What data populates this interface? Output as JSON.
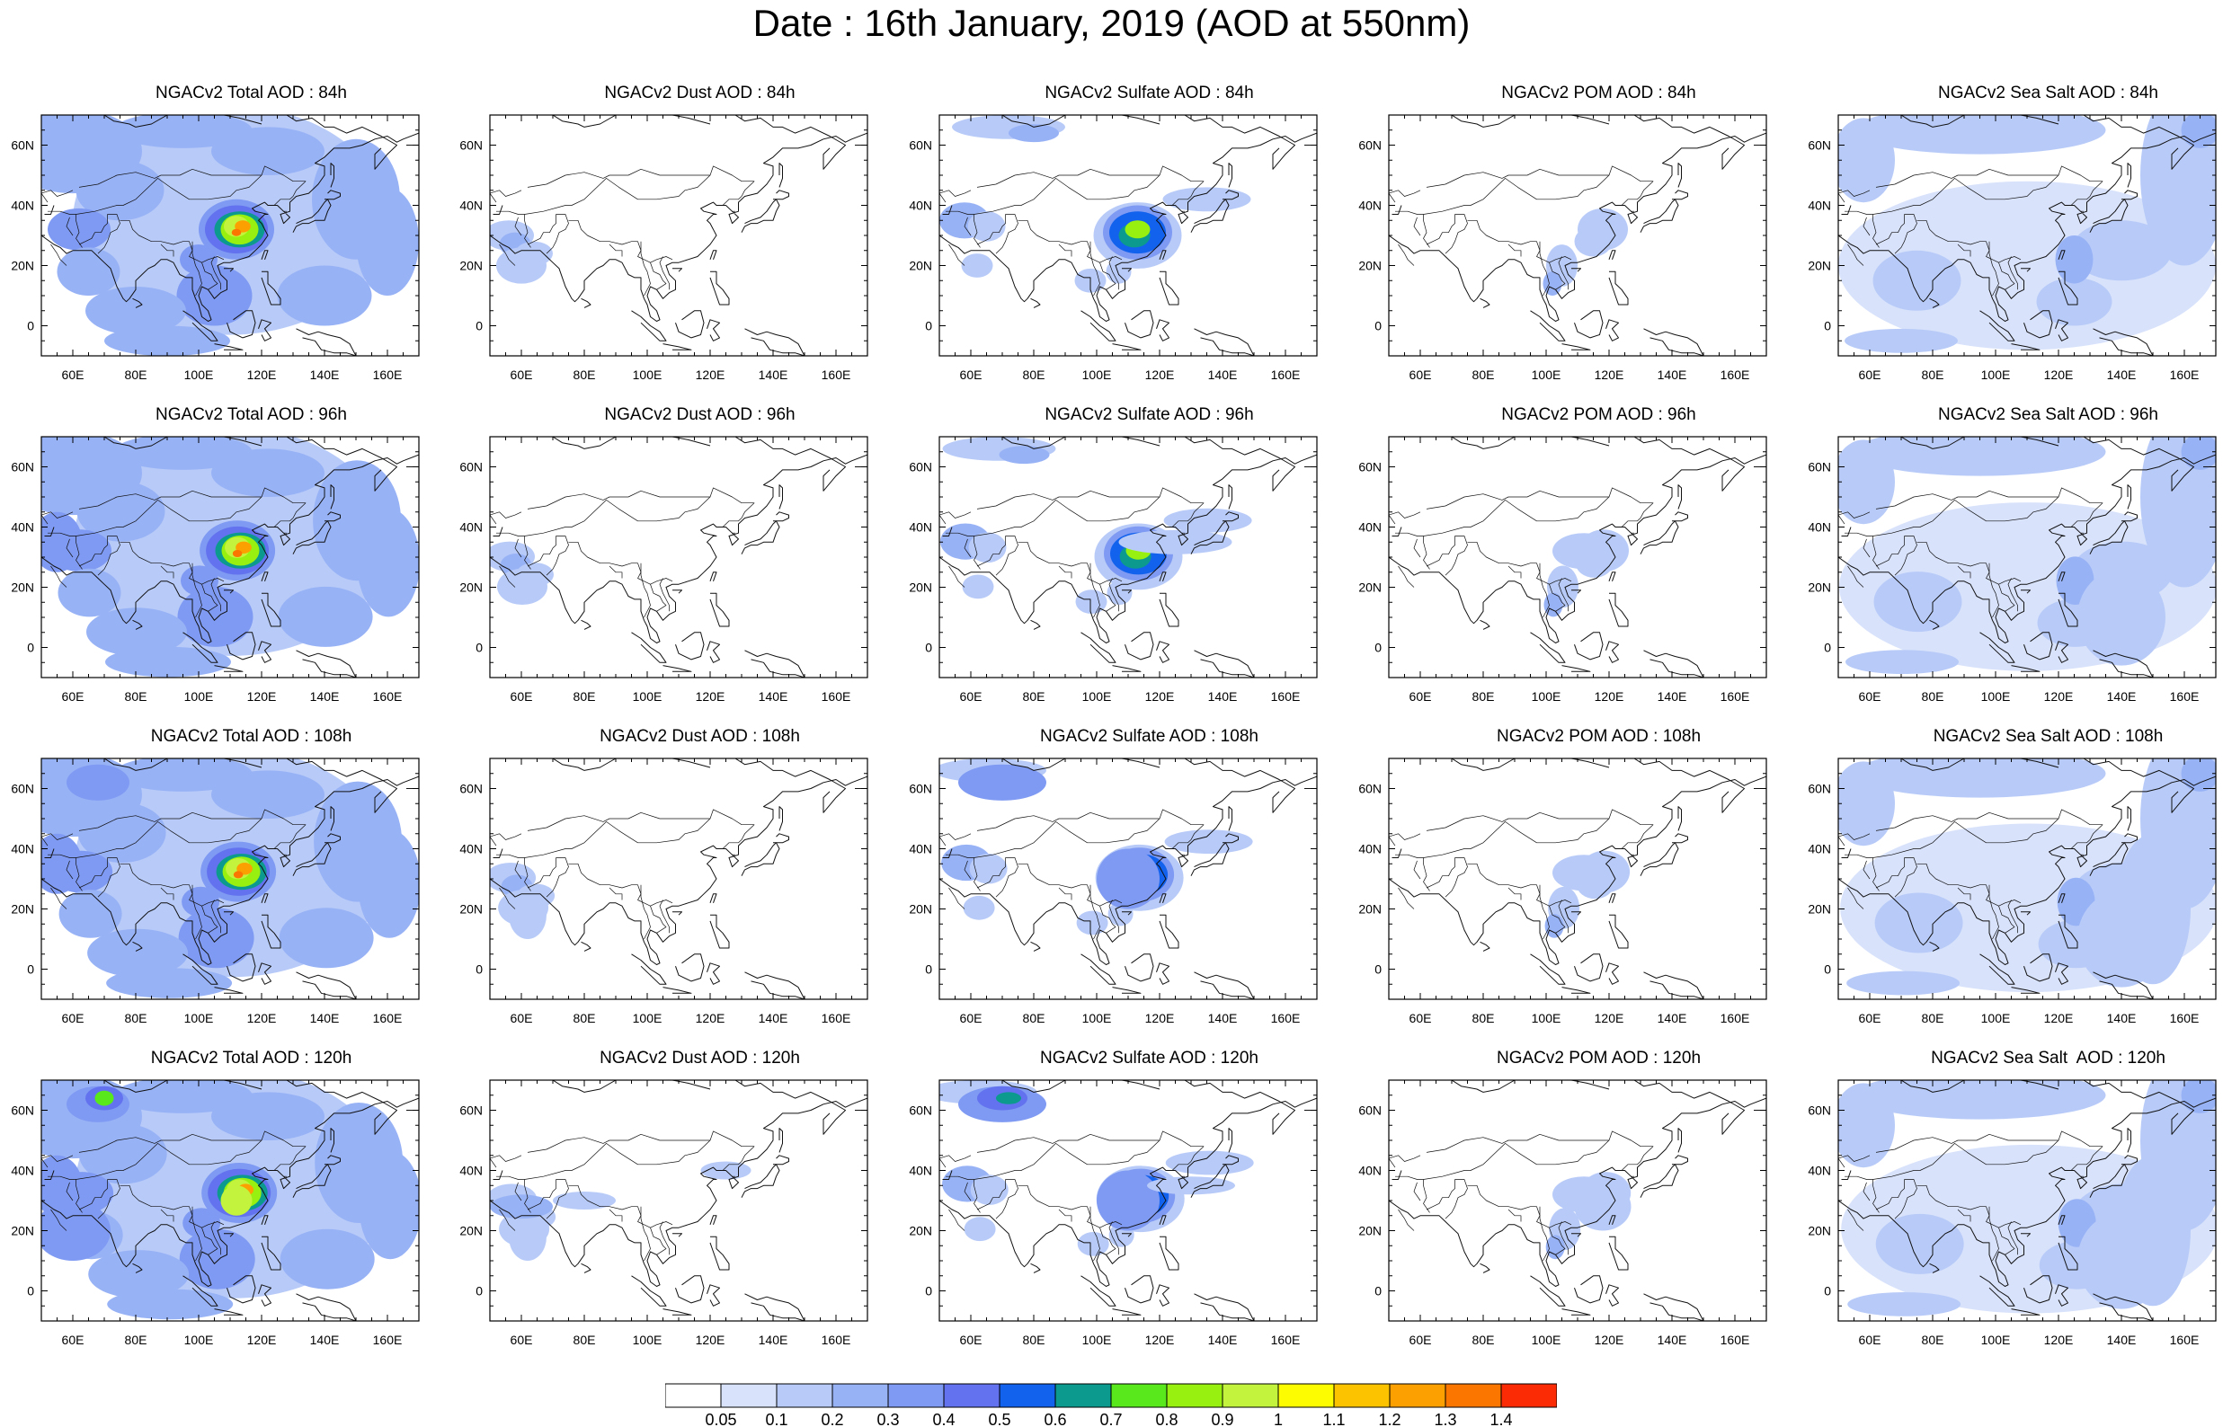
{
  "title": "Date : 16th January, 2019 (AOD at 550nm)",
  "axes": {
    "lat_labels": [
      "60N",
      "40N",
      "20N",
      "0"
    ],
    "lon_labels": [
      "60E",
      "80E",
      "100E",
      "120E",
      "140E",
      "160E"
    ]
  },
  "panels": [
    {
      "title": "NGACv2 Total AOD : 84h",
      "species": "total"
    },
    {
      "title": "NGACv2 Dust AOD : 84h",
      "species": "dust"
    },
    {
      "title": "NGACv2 Sulfate AOD : 84h",
      "species": "sulfate"
    },
    {
      "title": "NGACv2 POM AOD : 84h",
      "species": "pom"
    },
    {
      "title": "NGACv2 Sea Salt AOD : 84h",
      "species": "seasalt"
    },
    {
      "title": "NGACv2 Total AOD : 96h",
      "species": "total"
    },
    {
      "title": "NGACv2 Dust AOD : 96h",
      "species": "dust"
    },
    {
      "title": "NGACv2 Sulfate AOD : 96h",
      "species": "sulfate"
    },
    {
      "title": "NGACv2 POM AOD : 96h",
      "species": "pom"
    },
    {
      "title": "NGACv2 Sea Salt AOD : 96h",
      "species": "seasalt"
    },
    {
      "title": "NGACv2 Total AOD : 108h",
      "species": "total"
    },
    {
      "title": "NGACv2 Dust AOD : 108h",
      "species": "dust"
    },
    {
      "title": "NGACv2 Sulfate AOD : 108h",
      "species": "sulfate"
    },
    {
      "title": "NGACv2 POM AOD : 108h",
      "species": "pom"
    },
    {
      "title": "NGACv2 Sea Salt AOD : 108h",
      "species": "seasalt"
    },
    {
      "title": "NGACv2 Total AOD : 120h",
      "species": "total"
    },
    {
      "title": "NGACv2 Dust AOD : 120h",
      "species": "dust"
    },
    {
      "title": "NGACv2 Sulfate AOD : 120h",
      "species": "sulfate"
    },
    {
      "title": "NGACv2 POM AOD : 120h",
      "species": "pom"
    },
    {
      "title": "NGACv2 Sea Salt  AOD : 120h",
      "species": "seasalt"
    }
  ],
  "colorbar": {
    "labels": [
      "0.05",
      "0.1",
      "0.2",
      "0.3",
      "0.4",
      "0.5",
      "0.6",
      "0.7",
      "0.8",
      "0.9",
      "1",
      "1.1",
      "1.2",
      "1.3",
      "1.4"
    ],
    "colors": [
      "#ffffff",
      "#d8e2fb",
      "#b8cbf8",
      "#98b2f6",
      "#7f9af2",
      "#6372ee",
      "#1362ee",
      "#0c9a8f",
      "#58e81c",
      "#98f011",
      "#c4f33d",
      "#fefc00",
      "#fcc300",
      "#fba000",
      "#fb7600",
      "#fb2b06"
    ]
  }
}
